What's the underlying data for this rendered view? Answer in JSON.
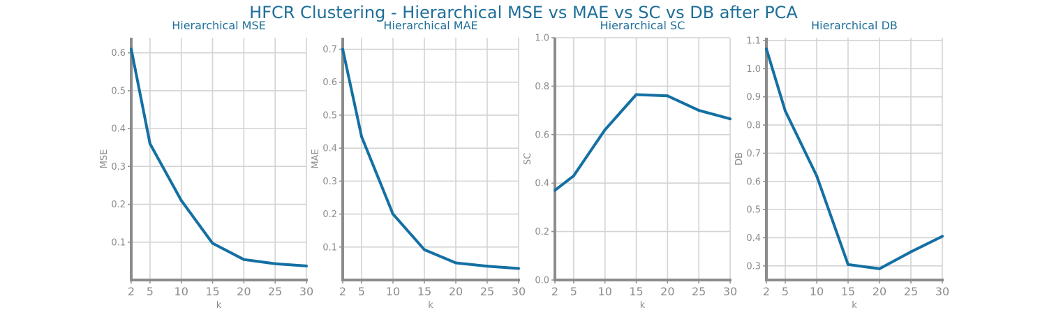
{
  "figure": {
    "suptitle": "HFCR Clustering - Hierarchical MSE vs MAE vs SC vs DB after PCA"
  },
  "colors": {
    "line": "#1470a3",
    "title": "#1f6f99",
    "axis": "#8c8c8c",
    "grid": "#d3d3d3",
    "tick_text": "#8c8c8c"
  },
  "chart_data": [
    {
      "type": "line",
      "title": "Hierarchical MSE",
      "xlabel": "k",
      "ylabel": "MSE",
      "x": [
        2,
        5,
        10,
        15,
        20,
        25,
        30
      ],
      "series": [
        {
          "values": [
            0.61,
            0.36,
            0.21,
            0.097,
            0.054,
            0.043,
            0.037
          ]
        }
      ],
      "xticks": [
        2,
        5,
        10,
        15,
        20,
        25,
        30
      ],
      "yticks": [
        0.1,
        0.2,
        0.3,
        0.4,
        0.5,
        0.6
      ],
      "xlim": [
        2,
        30
      ],
      "ylim": [
        0.0,
        0.64
      ],
      "grid": true
    },
    {
      "type": "line",
      "title": "Hierarchical MAE",
      "xlabel": "k",
      "ylabel": "MAE",
      "x": [
        2,
        5,
        10,
        15,
        20,
        25,
        30
      ],
      "series": [
        {
          "values": [
            0.7,
            0.435,
            0.2,
            0.092,
            0.052,
            0.042,
            0.035
          ]
        }
      ],
      "xticks": [
        2,
        5,
        10,
        15,
        20,
        25,
        30
      ],
      "yticks": [
        0.1,
        0.2,
        0.3,
        0.4,
        0.5,
        0.6,
        0.7
      ],
      "xlim": [
        2,
        30
      ],
      "ylim": [
        0.0,
        0.735
      ],
      "grid": true
    },
    {
      "type": "line",
      "title": "Hierarchical SC",
      "xlabel": "k",
      "ylabel": "SC",
      "x": [
        2,
        5,
        10,
        15,
        20,
        25,
        30
      ],
      "series": [
        {
          "values": [
            0.37,
            0.43,
            0.62,
            0.765,
            0.76,
            0.7,
            0.665
          ]
        }
      ],
      "xticks": [
        2,
        5,
        10,
        15,
        20,
        25,
        30
      ],
      "yticks": [
        0.0,
        0.2,
        0.4,
        0.6,
        0.8,
        1.0
      ],
      "ytick_labels": [
        "0.0",
        "0.2",
        "0.4",
        "0.6",
        "0.8",
        "1.0"
      ],
      "xlim": [
        2,
        30
      ],
      "ylim": [
        0.0,
        1.0
      ],
      "grid": true
    },
    {
      "type": "line",
      "title": "Hierarchical DB",
      "xlabel": "k",
      "ylabel": "DB",
      "x": [
        2,
        5,
        10,
        15,
        20,
        25,
        30
      ],
      "series": [
        {
          "values": [
            1.07,
            0.85,
            0.62,
            0.305,
            0.29,
            0.35,
            0.405
          ]
        }
      ],
      "xticks": [
        2,
        5,
        10,
        15,
        20,
        25,
        30
      ],
      "yticks": [
        0.3,
        0.4,
        0.5,
        0.6,
        0.7,
        0.8,
        0.9,
        1.0,
        1.1
      ],
      "xlim": [
        2,
        30
      ],
      "ylim": [
        0.25,
        1.11
      ],
      "grid": true
    }
  ]
}
